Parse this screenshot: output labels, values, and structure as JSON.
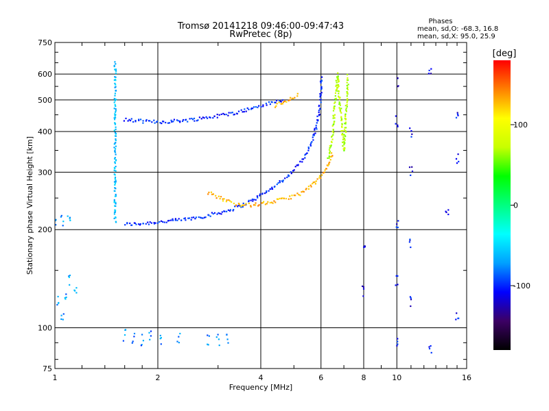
{
  "chart_data": {
    "type": "scatter",
    "title": "Tromsø 20141218 09:46:00-09:47:43",
    "subtitle": "RwPretec (8p)",
    "stats": {
      "label": "Phases",
      "line_o": "mean, sd,O: -68.3, 16.8",
      "line_x": "mean, sd,X:  95.0, 25.9"
    },
    "xlabel": "Frequency [MHz]",
    "ylabel": "Stationary phase Virtual Height [km]",
    "x_scale": "log",
    "y_scale": "log",
    "xlim": [
      1,
      16
    ],
    "ylim": [
      75,
      750
    ],
    "x_ticks": [
      1,
      2,
      4,
      6,
      8,
      10,
      16
    ],
    "x_tick_labels": [
      "1",
      "2",
      "4",
      "6",
      "8",
      "10",
      "16"
    ],
    "y_ticks": [
      75,
      100,
      200,
      300,
      400,
      500,
      600,
      750
    ],
    "y_tick_labels": [
      "75",
      "100",
      "200",
      "300",
      "400",
      "500",
      "600",
      "750"
    ],
    "grid": true,
    "colorbar": {
      "label": "[deg]",
      "range": [
        -180,
        180
      ],
      "ticks": [
        100,
        0,
        -100
      ],
      "tick_labels": [
        "100",
        "0",
        "-100"
      ],
      "colors": [
        "#000000",
        "#3c0064",
        "#0000ff",
        "#00a0ff",
        "#00ffff",
        "#00ff80",
        "#00ff00",
        "#c8ff00",
        "#ffff00",
        "#ff8000",
        "#ff0000"
      ]
    },
    "series": [
      {
        "label": "O-mode trace (lower, 1.6-6 MHz)",
        "phase": -100,
        "points": [
          [
            1.6,
            208
          ],
          [
            1.7,
            208
          ],
          [
            1.8,
            209
          ],
          [
            1.9,
            210
          ],
          [
            2.0,
            211
          ],
          [
            2.2,
            213
          ],
          [
            2.4,
            215
          ],
          [
            2.6,
            218
          ],
          [
            2.8,
            221
          ],
          [
            3.0,
            225
          ],
          [
            3.2,
            229
          ],
          [
            3.4,
            234
          ],
          [
            3.6,
            240
          ],
          [
            3.8,
            247
          ],
          [
            4.0,
            255
          ],
          [
            4.3,
            268
          ],
          [
            4.6,
            282
          ],
          [
            4.9,
            298
          ],
          [
            5.1,
            312
          ],
          [
            5.3,
            330
          ],
          [
            5.5,
            350
          ],
          [
            5.6,
            365
          ],
          [
            5.7,
            385
          ],
          [
            5.8,
            410
          ],
          [
            5.9,
            445
          ],
          [
            5.95,
            480
          ],
          [
            6.0,
            530
          ],
          [
            6.0,
            590
          ]
        ]
      },
      {
        "label": "O-mode trace (upper, 1.6-4.7 MHz)",
        "phase": -100,
        "points": [
          [
            1.6,
            435
          ],
          [
            1.8,
            430
          ],
          [
            2.0,
            428
          ],
          [
            2.2,
            430
          ],
          [
            2.4,
            433
          ],
          [
            2.6,
            437
          ],
          [
            2.8,
            442
          ],
          [
            3.0,
            447
          ],
          [
            3.2,
            452
          ],
          [
            3.4,
            458
          ],
          [
            3.6,
            465
          ],
          [
            3.8,
            472
          ],
          [
            4.0,
            480
          ],
          [
            4.3,
            490
          ],
          [
            4.7,
            500
          ]
        ]
      },
      {
        "label": "Vertical band at 1.5 MHz",
        "phase": -60,
        "points": [
          [
            1.5,
            650
          ],
          [
            1.5,
            600
          ],
          [
            1.5,
            550
          ],
          [
            1.5,
            500
          ],
          [
            1.5,
            450
          ],
          [
            1.5,
            400
          ],
          [
            1.5,
            350
          ],
          [
            1.5,
            300
          ],
          [
            1.5,
            260
          ],
          [
            1.5,
            230
          ],
          [
            1.5,
            210
          ]
        ]
      },
      {
        "label": "X-mode trace (lower, 2.8-6.6 MHz)",
        "phase": 130,
        "points": [
          [
            2.8,
            260
          ],
          [
            3.0,
            252
          ],
          [
            3.2,
            245
          ],
          [
            3.4,
            240
          ],
          [
            3.6,
            238
          ],
          [
            3.8,
            238
          ],
          [
            4.0,
            240
          ],
          [
            4.3,
            243
          ],
          [
            4.6,
            247
          ],
          [
            4.9,
            252
          ],
          [
            5.2,
            258
          ],
          [
            5.5,
            267
          ],
          [
            5.8,
            280
          ],
          [
            6.1,
            298
          ],
          [
            6.3,
            315
          ],
          [
            6.5,
            345
          ]
        ]
      },
      {
        "label": "X-mode trace (upper, 4.4-5.3 MHz)",
        "phase": 130,
        "points": [
          [
            4.4,
            480
          ],
          [
            4.6,
            490
          ],
          [
            4.8,
            500
          ],
          [
            5.0,
            510
          ],
          [
            5.2,
            520
          ]
        ]
      },
      {
        "label": "X-mode cusp (6.3-7.3 MHz)",
        "phase": 70,
        "points": [
          [
            6.3,
            330
          ],
          [
            6.5,
            400
          ],
          [
            6.6,
            500
          ],
          [
            6.7,
            600
          ],
          [
            7.0,
            350
          ],
          [
            7.1,
            450
          ],
          [
            7.2,
            600
          ]
        ]
      },
      {
        "label": "Low-frequency echoes (1-1.1 MHz)",
        "phase": -70,
        "points": [
          [
            1.0,
            215
          ],
          [
            1.05,
            213
          ],
          [
            1.1,
            212
          ],
          [
            1.02,
            120
          ],
          [
            1.05,
            110
          ],
          [
            1.08,
            125
          ],
          [
            1.1,
            140
          ],
          [
            1.15,
            130
          ]
        ]
      },
      {
        "label": "Low-altitude echoes (1.6-3.2 MHz)",
        "phase": -80,
        "points": [
          [
            1.6,
            95
          ],
          [
            1.7,
            93
          ],
          [
            1.8,
            92
          ],
          [
            1.9,
            94
          ],
          [
            2.05,
            92
          ],
          [
            2.3,
            93
          ],
          [
            2.8,
            92
          ],
          [
            3.0,
            92
          ],
          [
            3.2,
            92
          ]
        ]
      },
      {
        "label": "Scattered echoes (8-15 MHz)",
        "phase": -110,
        "points": [
          [
            8.0,
            180
          ],
          [
            8.0,
            130
          ],
          [
            10.0,
            570
          ],
          [
            10.0,
            430
          ],
          [
            10.0,
            210
          ],
          [
            10.0,
            140
          ],
          [
            10.0,
            90
          ],
          [
            11.0,
            400
          ],
          [
            11.0,
            300
          ],
          [
            11.0,
            180
          ],
          [
            11.0,
            120
          ],
          [
            12.5,
            600
          ],
          [
            12.5,
            86
          ],
          [
            14.0,
            230
          ],
          [
            15.0,
            450
          ],
          [
            15.0,
            330
          ],
          [
            15.0,
            107
          ]
        ]
      }
    ]
  }
}
